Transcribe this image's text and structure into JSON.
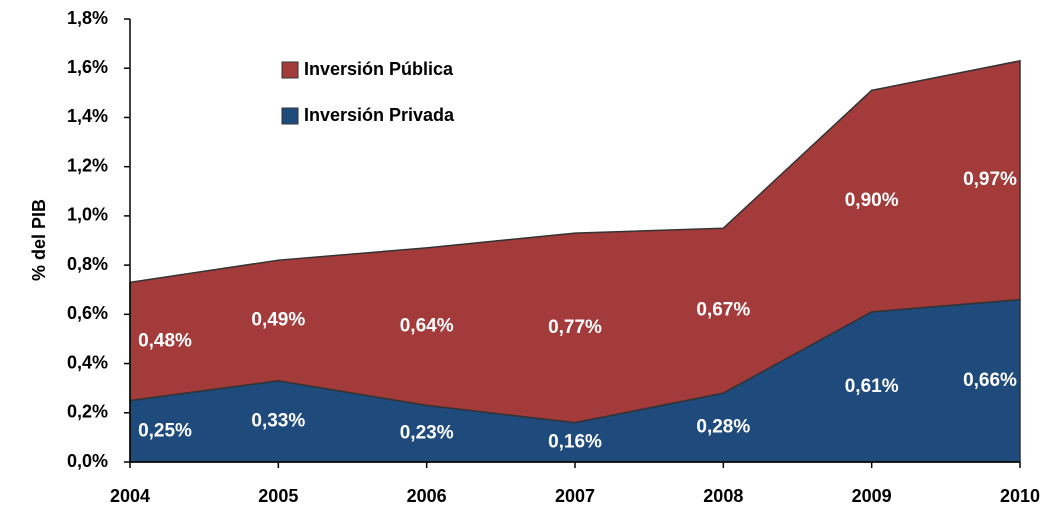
{
  "chart_data": {
    "type": "area",
    "stacked": true,
    "ylabel": "% del PIB",
    "categories": [
      "2004",
      "2005",
      "2006",
      "2007",
      "2008",
      "2009",
      "2010"
    ],
    "series": [
      {
        "name": "Inversión Privada",
        "color": "#1f4a7c",
        "values": [
          0.25,
          0.33,
          0.23,
          0.16,
          0.28,
          0.61,
          0.66
        ],
        "value_labels": [
          "0,25%",
          "0,33%",
          "0,23%",
          "0,16%",
          "0,28%",
          "0,61%",
          "0,66%"
        ]
      },
      {
        "name": "Inversión Pública",
        "color": "#a33b3b",
        "values": [
          0.48,
          0.49,
          0.64,
          0.77,
          0.67,
          0.9,
          0.97
        ],
        "value_labels": [
          "0,48%",
          "0,49%",
          "0,64%",
          "0,77%",
          "0,67%",
          "0,90%",
          "0,97%"
        ]
      }
    ],
    "ylim": [
      0,
      1.8
    ],
    "yticks": [
      {
        "value": 0,
        "label": "0,0%"
      },
      {
        "value": 0.2,
        "label": "0,2%"
      },
      {
        "value": 0.4,
        "label": "0,4%"
      },
      {
        "value": 0.6,
        "label": "0,6%"
      },
      {
        "value": 0.8,
        "label": "0,8%"
      },
      {
        "value": 1.0,
        "label": "1,0%"
      },
      {
        "value": 1.2,
        "label": "1,2%"
      },
      {
        "value": 1.4,
        "label": "1,4%"
      },
      {
        "value": 1.6,
        "label": "1,6%"
      },
      {
        "value": 1.8,
        "label": "1,8%"
      }
    ],
    "legend": "top-left"
  }
}
